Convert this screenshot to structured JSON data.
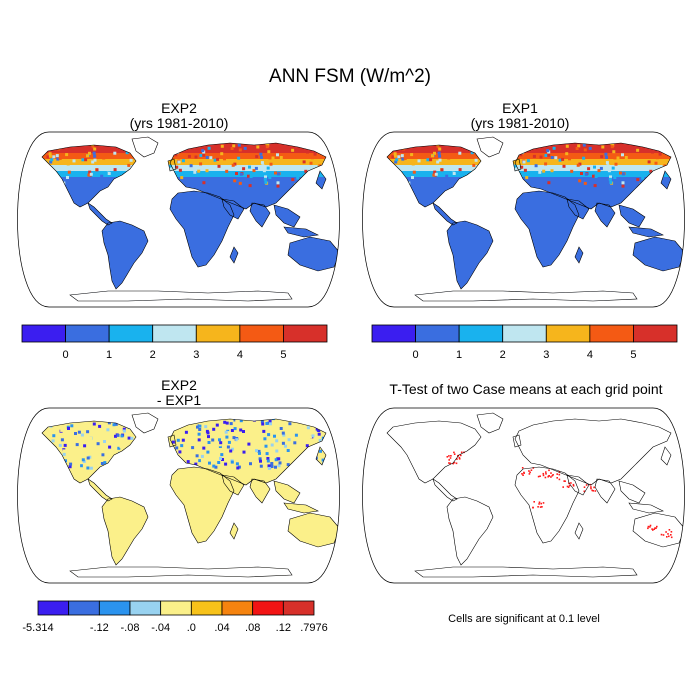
{
  "title": "ANN FSM (W/m^2)",
  "panels": [
    {
      "id": "exp2",
      "title_lines": [
        "EXP2",
        "(yrs 1981-2010)"
      ]
    },
    {
      "id": "exp1",
      "title_lines": [
        "EXP1",
        "(yrs 1981-2010)"
      ]
    },
    {
      "id": "diff",
      "title_lines": [
        "EXP2",
        "- EXP1"
      ]
    },
    {
      "id": "ttest",
      "title_lines": [
        "T-Test of two Case means at each grid point"
      ]
    }
  ],
  "colorbar_abs": {
    "colors": [
      "#3b1ef0",
      "#3a6ee0",
      "#19b2ee",
      "#bfe6f0",
      "#f6b51c",
      "#f45a14",
      "#d7302a"
    ],
    "labels": [
      "0",
      "1",
      "2",
      "3",
      "4",
      "5"
    ]
  },
  "colorbar_diff": {
    "colors": [
      "#3b1ef0",
      "#3a6ee0",
      "#2b93ee",
      "#98d2f0",
      "#fbf08a",
      "#f7c21a",
      "#f5830f",
      "#f21414",
      "#d7302a"
    ],
    "labels": [
      "-5.314",
      "-.12",
      "-.08",
      "-.04",
      ".0",
      ".04",
      ".08",
      ".12",
      ".7976"
    ]
  },
  "significance_note": "Cells are significant at 0.1 level",
  "map_colors": {
    "land_base": "#3a6ee0",
    "cold_band_1": "#d7302a",
    "cold_band_2": "#f45a14",
    "cold_band_3": "#f6b51c",
    "cold_band_4": "#bfe6f0",
    "cold_band_5": "#19b2ee",
    "diff_land": "#fbf08a",
    "diff_neg": "#3a6ee0",
    "diff_neg2": "#98d2f0",
    "sig_dots": "#ff1a1a"
  }
}
